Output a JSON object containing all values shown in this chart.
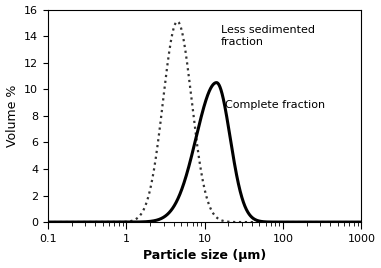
{
  "title": "",
  "xlabel": "Particle size (μm)",
  "ylabel": "Volume %",
  "xlim": [
    0.1,
    1000
  ],
  "ylim": [
    0,
    16
  ],
  "yticks": [
    0,
    2,
    4,
    6,
    8,
    10,
    12,
    14,
    16
  ],
  "less_sedimented": {
    "mu_log": 1.5,
    "sigma_log": 0.42,
    "peak": 15.1,
    "label": "Less sedimented\nfraction",
    "linestyle": "dotted",
    "color": "#333333",
    "linewidth": 1.6,
    "dashes": [
      1.5,
      2.0
    ]
  },
  "complete": {
    "mu_log": 2.65,
    "sigma_log": 0.6,
    "peak": 10.5,
    "label": "Complete fraction",
    "linestyle": "solid",
    "color": "#000000",
    "linewidth": 2.2
  },
  "ann_less_x": 16,
  "ann_less_y": 14.8,
  "ann_complete_x": 18,
  "ann_complete_y": 9.2,
  "fontsize_label": 9,
  "fontsize_tick": 8,
  "fontsize_annotation": 8,
  "background_color": "#ffffff"
}
